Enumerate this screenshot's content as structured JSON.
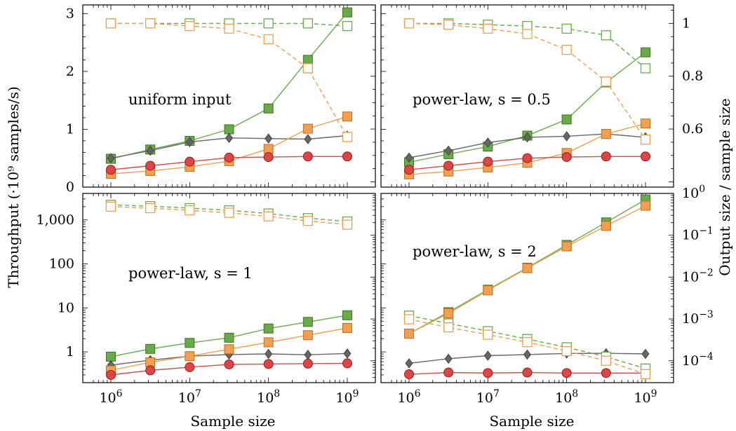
{
  "chart_data": [
    {
      "type": "line",
      "panel": "top-left",
      "annotation": "uniform input",
      "xscale": "log",
      "x": [
        1000000,
        3162278,
        10000000,
        31622777,
        100000000,
        316227766,
        1000000000
      ],
      "xticks": [
        1000000,
        10000000,
        100000000,
        1000000000
      ],
      "ylabel": "Throughput (·10⁹ samples/s)",
      "yscale": "linear",
      "ylim": [
        0,
        3.15
      ],
      "yticks": [
        0,
        1,
        2,
        3
      ],
      "y2label": "Output size / sample size",
      "y2scale": "linear",
      "y2lim": [
        0.38,
        1.07
      ],
      "y2ticks": [
        0.6,
        0.8,
        1
      ],
      "series": [
        {
          "axis": "left",
          "marker": "square",
          "color": "#6aaa4c",
          "dashed": false,
          "values": [
            0.49,
            0.65,
            0.8,
            1.0,
            1.36,
            2.2,
            3.02
          ]
        },
        {
          "axis": "left",
          "marker": "diamond",
          "color": "#666666",
          "dashed": false,
          "values": [
            0.5,
            0.63,
            0.78,
            0.85,
            0.84,
            0.83,
            0.89
          ]
        },
        {
          "axis": "left",
          "marker": "square",
          "color": "#f0a050",
          "dashed": false,
          "values": [
            0.23,
            0.28,
            0.35,
            0.45,
            0.66,
            1.01,
            1.22
          ]
        },
        {
          "axis": "left",
          "marker": "circle",
          "color": "#d84848",
          "dashed": false,
          "values": [
            0.3,
            0.37,
            0.44,
            0.51,
            0.52,
            0.53,
            0.53
          ]
        },
        {
          "axis": "right",
          "marker": "open-square",
          "color": "#6aaa4c",
          "dashed": true,
          "values": [
            1.0,
            1.0,
            1.0,
            1.0,
            1.0,
            1.0,
            0.99
          ]
        },
        {
          "axis": "right",
          "marker": "open-square",
          "color": "#f0a050",
          "dashed": true,
          "values": [
            1.0,
            1.0,
            0.99,
            0.98,
            0.94,
            0.83,
            0.57
          ]
        }
      ]
    },
    {
      "type": "line",
      "panel": "top-right",
      "annotation": "power-law, s = 0.5",
      "xscale": "log",
      "x": [
        1000000,
        3162278,
        10000000,
        31622777,
        100000000,
        316227766,
        1000000000
      ],
      "xticks": [
        1000000,
        10000000,
        100000000,
        1000000000
      ],
      "yscale": "linear",
      "ylim": [
        0,
        3.15
      ],
      "y2scale": "linear",
      "y2lim": [
        0.38,
        1.07
      ],
      "y2ticks": [
        0.6,
        0.8,
        1
      ],
      "series": [
        {
          "axis": "left",
          "marker": "square",
          "color": "#6aaa4c",
          "dashed": false,
          "values": [
            0.43,
            0.57,
            0.7,
            0.89,
            1.17,
            1.81,
            2.33
          ]
        },
        {
          "axis": "left",
          "marker": "diamond",
          "color": "#666666",
          "dashed": false,
          "values": [
            0.51,
            0.63,
            0.77,
            0.86,
            0.88,
            0.92,
            0.86
          ]
        },
        {
          "axis": "left",
          "marker": "square",
          "color": "#f0a050",
          "dashed": false,
          "values": [
            0.22,
            0.27,
            0.34,
            0.42,
            0.59,
            0.92,
            1.1
          ]
        },
        {
          "axis": "left",
          "marker": "circle",
          "color": "#d84848",
          "dashed": false,
          "values": [
            0.3,
            0.37,
            0.44,
            0.5,
            0.52,
            0.53,
            0.53
          ]
        },
        {
          "axis": "right",
          "marker": "open-square",
          "color": "#6aaa4c",
          "dashed": true,
          "values": [
            1.0,
            1.0,
            0.995,
            0.99,
            0.98,
            0.955,
            0.83
          ]
        },
        {
          "axis": "right",
          "marker": "open-square",
          "color": "#f0a050",
          "dashed": true,
          "values": [
            1.0,
            0.995,
            0.98,
            0.96,
            0.9,
            0.78,
            0.56
          ]
        }
      ]
    },
    {
      "type": "line",
      "panel": "bottom-left",
      "annotation": "power-law, s = 1",
      "xscale": "log",
      "x": [
        1000000,
        3162278,
        10000000,
        31622777,
        100000000,
        316227766,
        1000000000
      ],
      "xticks": [
        1000000,
        10000000,
        100000000,
        1000000000
      ],
      "xlabel": "Sample size",
      "yscale": "log",
      "ylim": [
        0.2,
        4000
      ],
      "yticks": [
        1,
        10,
        100,
        1000
      ],
      "ytick_labels": [
        "1",
        "10",
        "100",
        "1,000"
      ],
      "y2scale": "log",
      "y2lim": [
        3e-05,
        1
      ],
      "series": [
        {
          "axis": "left",
          "marker": "square",
          "color": "#6aaa4c",
          "dashed": false,
          "values": [
            0.78,
            1.17,
            1.6,
            2.1,
            3.4,
            4.8,
            6.8
          ]
        },
        {
          "axis": "left",
          "marker": "diamond",
          "color": "#666666",
          "dashed": false,
          "values": [
            0.5,
            0.65,
            0.8,
            0.87,
            0.9,
            0.86,
            0.92
          ]
        },
        {
          "axis": "left",
          "marker": "square",
          "color": "#f0a050",
          "dashed": false,
          "values": [
            0.38,
            0.58,
            0.8,
            1.15,
            1.65,
            2.4,
            3.5
          ]
        },
        {
          "axis": "left",
          "marker": "circle",
          "color": "#d84848",
          "dashed": false,
          "values": [
            0.3,
            0.38,
            0.45,
            0.52,
            0.53,
            0.54,
            0.55
          ]
        },
        {
          "axis": "left",
          "marker": "open-square",
          "color": "#6aaa4c",
          "dashed": true,
          "values": [
            2200,
            2050,
            1850,
            1650,
            1400,
            1100,
            920
          ]
        },
        {
          "axis": "left",
          "marker": "open-square",
          "color": "#f0a050",
          "dashed": true,
          "values": [
            2000,
            1850,
            1650,
            1450,
            1200,
            950,
            780
          ]
        }
      ]
    },
    {
      "type": "line",
      "panel": "bottom-right",
      "annotation": "power-law, s = 2",
      "xscale": "log",
      "x": [
        1000000,
        3162278,
        10000000,
        31622777,
        100000000,
        316227766,
        1000000000
      ],
      "xticks": [
        1000000,
        10000000,
        100000000,
        1000000000
      ],
      "xlabel": "Sample size",
      "yscale": "log",
      "ylim": [
        0.2,
        4000
      ],
      "y2scale": "log",
      "y2lim": [
        3e-05,
        1
      ],
      "y2ticks": [
        0.0001,
        0.001,
        0.01,
        0.1,
        1
      ],
      "series": [
        {
          "axis": "left",
          "marker": "square",
          "color": "#6aaa4c",
          "dashed": false,
          "values": [
            2.6,
            8.0,
            26,
            82,
            270,
            880,
            2900
          ]
        },
        {
          "axis": "left",
          "marker": "square",
          "color": "#f0a050",
          "dashed": false,
          "values": [
            2.6,
            7.5,
            25,
            80,
            250,
            730,
            2100
          ]
        },
        {
          "axis": "left",
          "marker": "diamond",
          "color": "#666666",
          "dashed": false,
          "values": [
            0.55,
            0.7,
            0.82,
            0.87,
            0.92,
            0.93,
            0.9
          ]
        },
        {
          "axis": "left",
          "marker": "circle",
          "color": "#d84848",
          "dashed": false,
          "values": [
            0.31,
            0.34,
            0.33,
            0.34,
            0.33,
            0.33,
            0.33
          ]
        },
        {
          "axis": "right",
          "marker": "open-square",
          "color": "#6aaa4c",
          "dashed": true,
          "values": [
            0.0012,
            0.00078,
            0.00051,
            0.00033,
            0.00021,
            0.000125,
            6.5e-05
          ]
        },
        {
          "axis": "right",
          "marker": "open-square",
          "color": "#f0a050",
          "dashed": true,
          "values": [
            0.00098,
            0.00063,
            0.00042,
            0.00028,
            0.00017,
            0.0001,
            4.8e-05
          ]
        }
      ]
    }
  ]
}
